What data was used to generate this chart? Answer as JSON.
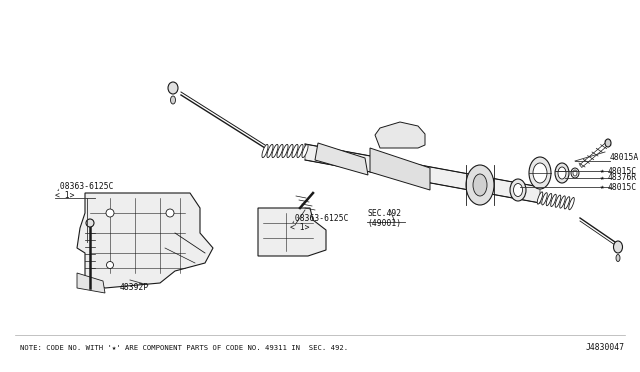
{
  "background_color": "#ffffff",
  "fig_width": 6.4,
  "fig_height": 3.72,
  "dpi": 100,
  "note_text": "NOTE: CODE NO. WITH '★' ARE COMPONENT PARTS OF CODE NO. 49311 IN  SEC. 492.",
  "diagram_id": "J4830047",
  "label_B1": "¸08363-6125C\n< 1>",
  "label_B2": "¸08363-6125C\n< 1>",
  "label_48392P": "48392P",
  "label_SEC": "SEC.492\n(49001)",
  "label_48015A": "48015A",
  "label_48015C_1": "48015C",
  "label_48376R": "48376R",
  "label_48015C_2": "48015C",
  "note_fontsize": 5.2,
  "id_fontsize": 5.8,
  "label_fontsize": 5.8
}
